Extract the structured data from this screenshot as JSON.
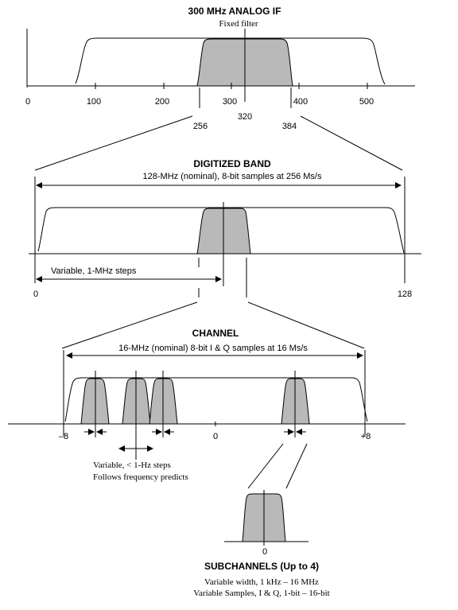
{
  "if_section": {
    "title": "300 MHz ANALOG IF",
    "subtitle": "Fixed filter",
    "axis_ticks": [
      "0",
      "100",
      "200",
      "300",
      "400",
      "500"
    ],
    "markers": [
      "256",
      "320",
      "384"
    ]
  },
  "digitized_section": {
    "title": "DIGITIZED BAND",
    "span_label": "128-MHz (nominal), 8-bit samples at 256 Ms/s",
    "step_label": "Variable, 1-MHz steps",
    "axis_start": "0",
    "axis_end": "128"
  },
  "channel_section": {
    "title": "CHANNEL",
    "span_label": "16-MHz (nominal) 8-bit I & Q samples at 16 Ms/s",
    "axis_ticks": [
      "–8",
      "0",
      "+8"
    ],
    "note_line1": "Variable, < 1-Hz steps",
    "note_line2": "Follows frequency predicts"
  },
  "subchannel_section": {
    "title": "SUBCHANNELS (Up to 4)",
    "axis_label": "0",
    "line1": "Variable width,  1 kHz – 16 MHz",
    "line2": "Variable Samples, I & Q, 1-bit – 16-bit"
  },
  "colors": {
    "shade": "#b9b9b9",
    "line": "#000000"
  }
}
